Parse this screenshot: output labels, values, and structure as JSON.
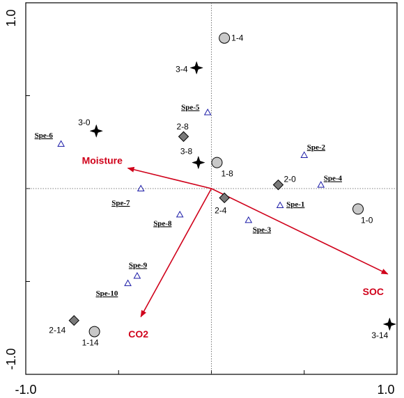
{
  "chart_data": {
    "type": "scatter",
    "title": "",
    "xlabel": "",
    "ylabel": "",
    "xlim": [
      -1.0,
      1.0
    ],
    "ylim": [
      -1.0,
      1.0
    ],
    "x_tick_labels": [
      "-1.0",
      "1.0"
    ],
    "y_tick_labels": [
      "1.0",
      "-1.0"
    ],
    "grid": false,
    "colors": {
      "arrow": "#d0021b",
      "species": "#1a1aa6",
      "circle_fill": "#c8c8c8",
      "diamond_fill": "#7a7a7a",
      "star": "#000000"
    },
    "env_vectors": [
      {
        "label": "Moisture",
        "x": -0.45,
        "y": 0.11
      },
      {
        "label": "SOC",
        "x": 0.95,
        "y": -0.46
      },
      {
        "label": "CO2",
        "x": -0.38,
        "y": -0.69
      }
    ],
    "sites": [
      {
        "label": "1-4",
        "marker": "circle",
        "x": 0.07,
        "y": 0.81
      },
      {
        "label": "3-4",
        "marker": "star",
        "x": -0.08,
        "y": 0.65
      },
      {
        "label": "3-0",
        "marker": "star",
        "x": -0.62,
        "y": 0.31
      },
      {
        "label": "2-8",
        "marker": "diamond",
        "x": -0.15,
        "y": 0.28
      },
      {
        "label": "3-8",
        "marker": "star",
        "x": -0.07,
        "y": 0.14
      },
      {
        "label": "1-8",
        "marker": "circle",
        "x": 0.03,
        "y": 0.14
      },
      {
        "label": "2-0",
        "marker": "diamond",
        "x": 0.36,
        "y": 0.02
      },
      {
        "label": "1-0",
        "marker": "circle",
        "x": 0.79,
        "y": -0.11
      },
      {
        "label": "2-4",
        "marker": "diamond",
        "x": 0.07,
        "y": -0.05
      },
      {
        "label": "2-14",
        "marker": "diamond",
        "x": -0.74,
        "y": -0.71
      },
      {
        "label": "1-14",
        "marker": "circle",
        "x": -0.63,
        "y": -0.77
      },
      {
        "label": "3-14",
        "marker": "star",
        "x": 0.96,
        "y": -0.73
      }
    ],
    "species": [
      {
        "label": "Spe-1",
        "x": 0.37,
        "y": -0.09
      },
      {
        "label": "Spe-2",
        "x": 0.5,
        "y": 0.18
      },
      {
        "label": "Spe-3",
        "x": 0.2,
        "y": -0.17
      },
      {
        "label": "Spe-4",
        "x": 0.59,
        "y": 0.02
      },
      {
        "label": "Spe-5",
        "x": -0.02,
        "y": 0.41
      },
      {
        "label": "Spe-6",
        "x": -0.81,
        "y": 0.24
      },
      {
        "label": "Spe-7",
        "x": -0.38,
        "y": 0.0
      },
      {
        "label": "Spe-8",
        "x": -0.17,
        "y": -0.14
      },
      {
        "label": "Spe-9",
        "x": -0.4,
        "y": -0.47
      },
      {
        "label": "Spe-10",
        "x": -0.45,
        "y": -0.51
      }
    ]
  }
}
